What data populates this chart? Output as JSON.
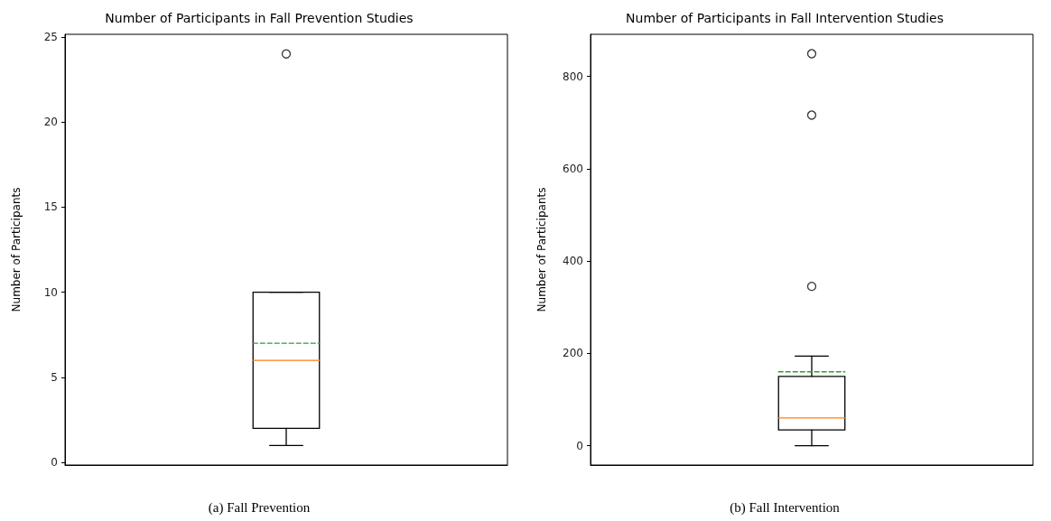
{
  "chart_data": [
    {
      "type": "box",
      "title": "Number of Participants in Fall Prevention Studies",
      "ylabel": "Number of Participants",
      "categories": [
        null
      ],
      "color": "#000000",
      "marker": "circle",
      "tick_labels": "y",
      "ylim": [
        -0.15,
        25.15
      ],
      "yticks": [
        0,
        5,
        10,
        15,
        20,
        25
      ],
      "boxes": [
        {
          "low": 1,
          "q1": 2,
          "median": 6,
          "q3": 10,
          "high": 10,
          "mean": 7,
          "outliers": [
            24
          ]
        }
      ],
      "annotations": [
        "(a) Fall Prevention"
      ]
    },
    {
      "type": "box",
      "title": "Number of Participants in Fall Intervention Studies",
      "ylabel": "Number of Participants",
      "categories": [
        null
      ],
      "color": "#000000",
      "marker": "circle",
      "tick_labels": "y",
      "ylim": [
        -42,
        891
      ],
      "yticks": [
        0,
        200,
        400,
        600,
        800
      ],
      "boxes": [
        {
          "low": 0,
          "q1": 34,
          "median": 60,
          "q3": 150,
          "high": 194,
          "mean": 160,
          "outliers": [
            345,
            716,
            849
          ]
        }
      ],
      "annotations": [
        "(b) Fall Intervention"
      ]
    }
  ]
}
